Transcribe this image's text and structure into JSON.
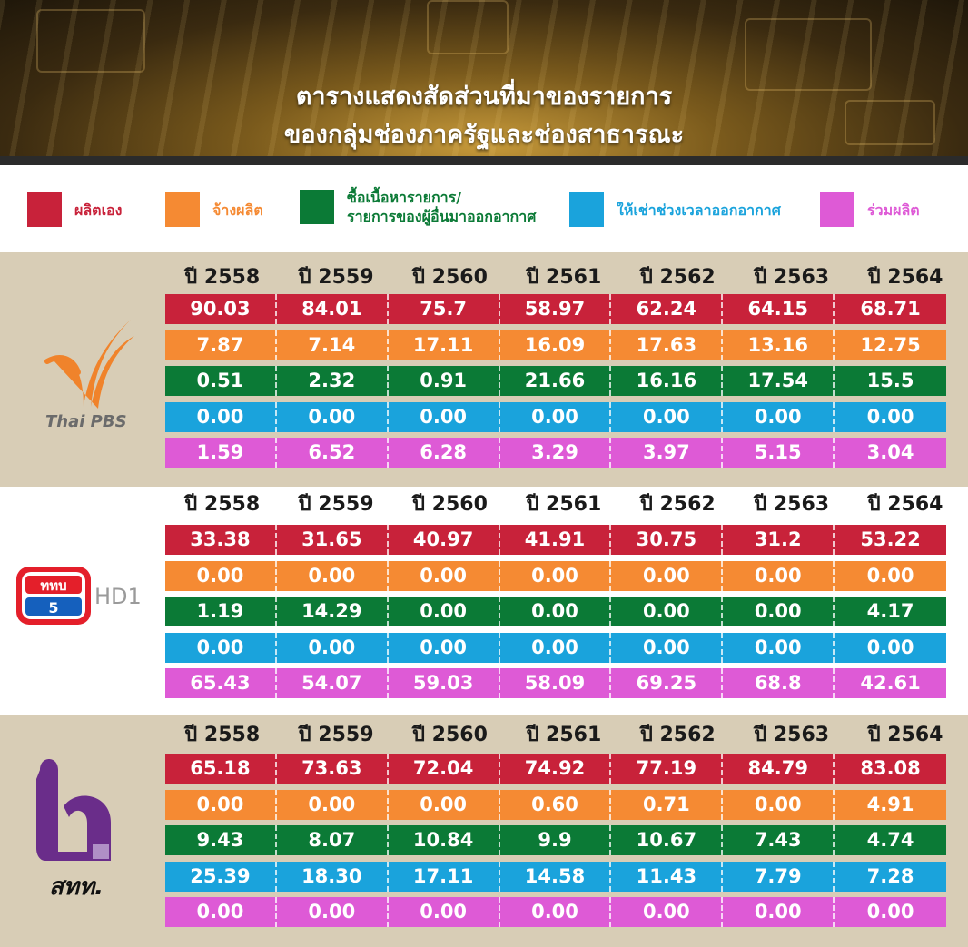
{
  "title": {
    "line1": "ตารางแสดงสัดส่วนที่มาของรายการ",
    "line2": "ของกลุ่มช่องภาครัฐและช่องสาธารณะ"
  },
  "legend": [
    {
      "label": "ผลิตเอง",
      "color": "#c8223a"
    },
    {
      "label": "จ้างผลิต",
      "color": "#f58a33"
    },
    {
      "label": "ซื้อเนื้อหารายการ/\nรายการของผู้อื่นมาออกอากาศ",
      "color": "#0b7a36"
    },
    {
      "label": "ให้เช่าช่วงเวลาออกอากาศ",
      "color": "#1aa3dc"
    },
    {
      "label": "ร่วมผลิต",
      "color": "#de5ad6"
    }
  ],
  "channels": [
    {
      "logo_text": "Thai PBS"
    },
    {
      "logo_text": "HD1"
    },
    {
      "logo_text": "สทท."
    }
  ],
  "chart_data": {
    "type": "table",
    "title": "ตารางแสดงสัดส่วนที่มาของรายการของกลุ่มช่องภาครัฐและช่องสาธารณะ",
    "columns": [
      "ปี 2558",
      "ปี 2559",
      "ปี 2560",
      "ปี 2561",
      "ปี 2562",
      "ปี 2563",
      "ปี 2564"
    ],
    "row_categories": [
      "ผลิตเอง",
      "จ้างผลิต",
      "ซื้อเนื้อหารายการ/รายการของผู้อื่นมาออกอากาศ",
      "ให้เช่าช่วงเวลาออกอากาศ",
      "ร่วมผลิต"
    ],
    "tables": [
      {
        "channel": "Thai PBS",
        "rows": [
          [
            "90.03",
            "84.01",
            "75.7",
            "58.97",
            "62.24",
            "64.15",
            "68.71"
          ],
          [
            "7.87",
            "7.14",
            "17.11",
            "16.09",
            "17.63",
            "13.16",
            "12.75"
          ],
          [
            "0.51",
            "2.32",
            "0.91",
            "21.66",
            "16.16",
            "17.54",
            "15.5"
          ],
          [
            "0.00",
            "0.00",
            "0.00",
            "0.00",
            "0.00",
            "0.00",
            "0.00"
          ],
          [
            "1.59",
            "6.52",
            "6.28",
            "3.29",
            "3.97",
            "5.15",
            "3.04"
          ]
        ]
      },
      {
        "channel": "HD1",
        "rows": [
          [
            "33.38",
            "31.65",
            "40.97",
            "41.91",
            "30.75",
            "31.2",
            "53.22"
          ],
          [
            "0.00",
            "0.00",
            "0.00",
            "0.00",
            "0.00",
            "0.00",
            "0.00"
          ],
          [
            "1.19",
            "14.29",
            "0.00",
            "0.00",
            "0.00",
            "0.00",
            "4.17"
          ],
          [
            "0.00",
            "0.00",
            "0.00",
            "0.00",
            "0.00",
            "0.00",
            "0.00"
          ],
          [
            "65.43",
            "54.07",
            "59.03",
            "58.09",
            "69.25",
            "68.8",
            "42.61"
          ]
        ]
      },
      {
        "channel": "สทท.",
        "rows": [
          [
            "65.18",
            "73.63",
            "72.04",
            "74.92",
            "77.19",
            "84.79",
            "83.08"
          ],
          [
            "0.00",
            "0.00",
            "0.00",
            "0.60",
            "0.71",
            "0.00",
            "4.91"
          ],
          [
            "9.43",
            "8.07",
            "10.84",
            "9.9",
            "10.67",
            "7.43",
            "4.74"
          ],
          [
            "25.39",
            "18.30",
            "17.11",
            "14.58",
            "11.43",
            "7.79",
            "7.28"
          ],
          [
            "0.00",
            "0.00",
            "0.00",
            "0.00",
            "0.00",
            "0.00",
            "0.00"
          ]
        ]
      }
    ]
  }
}
